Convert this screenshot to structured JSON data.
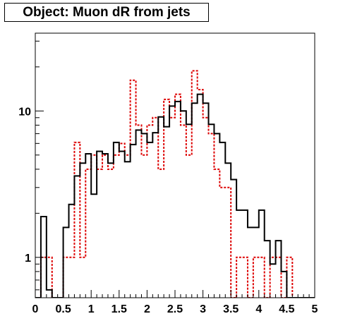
{
  "chart_data": {
    "type": "histogram",
    "title": "Object: Muon dR from jets",
    "xlabel": "",
    "ylabel": "",
    "xlim": [
      0,
      5
    ],
    "ylim": [
      0.53,
      34
    ],
    "y_scale": "log",
    "bin_width": 0.1,
    "x_ticks": [
      "0",
      "0.5",
      "1",
      "1.5",
      "2",
      "2.5",
      "3",
      "3.5",
      "4",
      "4.5",
      "5"
    ],
    "y_ticks": [
      "1",
      "10"
    ],
    "grid": false,
    "legend": "none",
    "series": [
      {
        "style": "solid",
        "color": "#000000",
        "values": [
          0.0,
          1.9,
          0.6,
          0.5,
          0.0,
          1.6,
          2.3,
          3.6,
          4.4,
          5.1,
          2.7,
          5.3,
          5.1,
          4.4,
          6.1,
          5.3,
          4.5,
          5.9,
          7.4,
          7.0,
          6.1,
          7.1,
          9.1,
          7.8,
          10.8,
          11.6,
          10.0,
          8.1,
          11.3,
          13.0,
          11.3,
          8.1,
          7.0,
          6.1,
          4.4,
          3.4,
          2.1,
          2.1,
          1.6,
          1.6,
          2.1,
          1.3,
          0.9,
          1.3,
          0.8,
          0.5,
          0.0,
          0.0,
          0.0,
          0.0
        ]
      },
      {
        "style": "dotted",
        "color": "#dd0000",
        "values": [
          0.0,
          1.0,
          1.0,
          0.0,
          0.0,
          1.0,
          1.0,
          6.1,
          1.0,
          4.0,
          5.0,
          4.0,
          5.0,
          4.0,
          5.0,
          6.0,
          5.0,
          16.2,
          8.0,
          5.0,
          8.0,
          9.0,
          4.0,
          12.0,
          9.0,
          13.0,
          8.0,
          5.0,
          18.8,
          14.0,
          9.0,
          7.0,
          4.0,
          3.0,
          3.0,
          0.0,
          1.0,
          1.0,
          0.0,
          1.0,
          1.0,
          0.0,
          1.0,
          1.0,
          0.0,
          1.0,
          0.0,
          0.0,
          0.0,
          0.0
        ]
      }
    ]
  }
}
